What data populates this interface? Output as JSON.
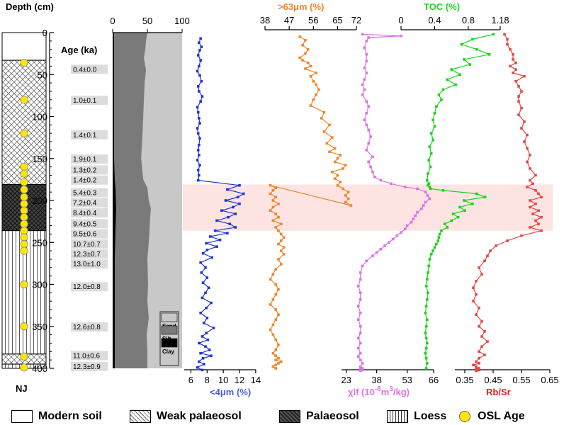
{
  "chart_data": {
    "type": "line",
    "depth_axis": {
      "title": "Depth (cm)",
      "ticks": [
        0,
        50,
        100,
        150,
        200,
        250,
        300,
        350,
        400
      ],
      "range": [
        0,
        400
      ]
    },
    "age_title": "Age (ka)",
    "site_label": "NJ",
    "ages": [
      {
        "depth": 45,
        "label": "0.4±0.0"
      },
      {
        "depth": 82,
        "label": "1.0±0.1"
      },
      {
        "depth": 123,
        "label": "1.4±0.1"
      },
      {
        "depth": 152,
        "label": "1.9±0.1"
      },
      {
        "depth": 165,
        "label": "1.3±0.2"
      },
      {
        "depth": 177,
        "label": "1.4±0.2"
      },
      {
        "depth": 192,
        "label": "5.4±0.3"
      },
      {
        "depth": 204,
        "label": "7.2±0.4"
      },
      {
        "depth": 216,
        "label": "8.4±0.4"
      },
      {
        "depth": 229,
        "label": "9.4±0.5"
      },
      {
        "depth": 241,
        "label": "9.5±0.6"
      },
      {
        "depth": 253,
        "label": "10.7±0.7"
      },
      {
        "depth": 265,
        "label": "12.3±0.7"
      },
      {
        "depth": 277,
        "label": "13.0±1.0"
      },
      {
        "depth": 304,
        "label": "12.0±0.8"
      },
      {
        "depth": 352,
        "label": "12.6±0.8"
      },
      {
        "depth": 386,
        "label": "11.0±0.6"
      },
      {
        "depth": 399,
        "label": "12.3±0.9"
      }
    ],
    "osl_dots": [
      36,
      80,
      120,
      160,
      168,
      178,
      187,
      196,
      204,
      212,
      220,
      228,
      236,
      244,
      252,
      260,
      300,
      350,
      386,
      399
    ],
    "stratigraphy": [
      {
        "unit": "modern_soil",
        "top": 0,
        "bottom": 33
      },
      {
        "unit": "weak_palaeosol",
        "top": 33,
        "bottom": 181
      },
      {
        "unit": "palaeosol",
        "top": 181,
        "bottom": 236
      },
      {
        "unit": "loess",
        "top": 236,
        "bottom": 383
      },
      {
        "unit": "weak_palaeosol",
        "top": 383,
        "bottom": 395
      },
      {
        "unit": "loess",
        "top": 395,
        "bottom": 400
      }
    ],
    "highlight": {
      "top": 181,
      "bottom": 236,
      "color": "#fde4e2"
    },
    "grain_size": {
      "ticks": [
        0,
        50,
        100
      ],
      "legend": [
        {
          "label": "Sand",
          "color": "#c8c8c8"
        },
        {
          "label": "Silt",
          "color": "#7a7a7a"
        },
        {
          "label": "Clay",
          "color": "#000000"
        }
      ],
      "clay": [
        [
          0,
          2
        ],
        [
          50,
          2
        ],
        [
          100,
          2
        ],
        [
          150,
          2
        ],
        [
          175,
          3
        ],
        [
          185,
          4
        ],
        [
          210,
          5
        ],
        [
          236,
          4
        ],
        [
          270,
          3
        ],
        [
          320,
          3
        ],
        [
          360,
          3
        ],
        [
          400,
          3
        ]
      ],
      "clay_silt": [
        [
          0,
          50
        ],
        [
          10,
          48
        ],
        [
          20,
          47
        ],
        [
          30,
          45
        ],
        [
          45,
          48
        ],
        [
          60,
          46
        ],
        [
          80,
          45
        ],
        [
          100,
          44
        ],
        [
          120,
          43
        ],
        [
          150,
          41
        ],
        [
          175,
          44
        ],
        [
          185,
          50
        ],
        [
          200,
          52
        ],
        [
          210,
          55
        ],
        [
          220,
          54
        ],
        [
          236,
          53
        ],
        [
          250,
          52
        ],
        [
          270,
          50
        ],
        [
          300,
          51
        ],
        [
          320,
          50
        ],
        [
          340,
          52
        ],
        [
          360,
          49
        ],
        [
          380,
          50
        ],
        [
          400,
          50
        ]
      ]
    },
    "series": [
      {
        "name": "<4μm (%)",
        "color": "#1f35d8",
        "axis_ticks": [
          6,
          8,
          10,
          12,
          14
        ],
        "axis_range": [
          5,
          15.5
        ],
        "x": [
          7.2,
          7.0,
          7.3,
          7.1,
          6.9,
          7.2,
          7.0,
          6.8,
          7.1,
          7.3,
          6.9,
          7.0,
          7.4,
          7.2,
          6.8,
          6.9,
          7.0,
          7.1,
          6.8,
          6.9,
          7.1,
          7.0,
          6.9,
          7.0,
          6.8,
          7.1,
          6.9,
          7.0,
          6.9,
          12.0,
          10.5,
          12.5,
          11.8,
          10.3,
          12.0,
          11.2,
          9.8,
          11.5,
          10.6,
          9.2,
          10.8,
          11.5,
          9.0,
          10.5,
          8.4,
          9.6,
          7.9,
          9.2,
          8.0,
          7.5,
          8.6,
          7.2,
          7.8,
          7.3,
          8.0,
          7.5,
          8.2,
          7.8,
          7.4,
          8.5,
          7.9,
          7.2,
          8.0,
          7.6,
          8.8,
          7.9,
          7.4,
          8.1,
          7.0,
          7.8,
          8.3,
          7.2,
          8.5,
          7.5,
          7.0,
          7.6,
          6.8,
          7.4
        ],
        "y": [
          7,
          12,
          17,
          21,
          27,
          33,
          40,
          46,
          51,
          58,
          64,
          70,
          76,
          82,
          89,
          95,
          102,
          108,
          114,
          120,
          126,
          134,
          140,
          146,
          152,
          158,
          164,
          170,
          176,
          182,
          187,
          192,
          196,
          200,
          204,
          208,
          212,
          216,
          220,
          224,
          228,
          232,
          236,
          239,
          243,
          247,
          251,
          255,
          259,
          263,
          268,
          274,
          280,
          286,
          292,
          298,
          304,
          310,
          316,
          322,
          328,
          334,
          340,
          346,
          352,
          358,
          362,
          366,
          370,
          374,
          378,
          382,
          385,
          388,
          392,
          395,
          399,
          402
        ]
      },
      {
        "name": ">63μm (%)",
        "color": "#f0852a",
        "axis_ticks": [
          38,
          47,
          56,
          65,
          72
        ],
        "axis_range": [
          38,
          72
        ],
        "x": [
          51,
          53,
          52,
          54,
          53,
          51,
          52,
          54,
          55,
          53,
          57,
          55,
          56,
          57,
          58,
          57,
          56,
          55,
          60,
          59,
          62,
          60,
          63,
          61,
          64,
          62,
          66,
          65,
          64,
          68,
          67,
          63,
          65,
          64,
          66,
          65,
          67,
          69,
          68,
          69,
          68,
          70
        ],
        "y": [
          5,
          9,
          15,
          20,
          25,
          30,
          33,
          36,
          40,
          43,
          48,
          52,
          58,
          62,
          68,
          74,
          80,
          87,
          95,
          102,
          110,
          118,
          125,
          132,
          138,
          142,
          146,
          150,
          154,
          158,
          162,
          166,
          170,
          174,
          178,
          182,
          186,
          190,
          194,
          198,
          202,
          206
        ],
        "note_series": "upper >63 segment"
      },
      {
        "name": "χlf (10-8m3/kg)",
        "color": "#e070e8",
        "axis_ticks": [
          23,
          38,
          53,
          66
        ],
        "tick_labels": [
          "23",
          "38",
          "53",
          "66"
        ],
        "axis_range": [
          20,
          66
        ],
        "x": [
          31,
          50,
          34,
          33,
          32,
          33,
          33,
          32,
          33,
          32,
          31,
          32,
          31,
          33,
          34,
          33,
          32,
          33,
          34,
          35,
          34,
          33,
          36,
          34,
          35,
          36,
          37,
          40,
          45,
          52,
          58,
          62,
          63,
          64,
          62,
          61,
          60,
          58,
          57,
          56,
          55,
          53,
          52,
          50,
          48,
          46,
          44,
          42,
          40,
          38,
          36,
          33,
          31,
          30,
          30,
          29,
          30,
          30,
          29,
          30,
          29,
          30,
          30,
          29,
          30,
          29,
          30,
          29,
          30,
          31,
          30,
          31,
          30,
          31,
          30
        ],
        "y": [
          2,
          4,
          6,
          10,
          18,
          26,
          34,
          42,
          48,
          56,
          62,
          68,
          74,
          82,
          88,
          96,
          104,
          110,
          116,
          124,
          132,
          140,
          148,
          154,
          160,
          166,
          172,
          176,
          180,
          184,
          186,
          190,
          194,
          198,
          202,
          206,
          210,
          214,
          218,
          222,
          226,
          230,
          234,
          238,
          242,
          246,
          250,
          254,
          258,
          262,
          266,
          272,
          278,
          286,
          294,
          302,
          310,
          318,
          326,
          334,
          342,
          350,
          358,
          364,
          370,
          376,
          382,
          386,
          390,
          394,
          398,
          400,
          401,
          402,
          403
        ]
      },
      {
        "name": "TOC (%)",
        "color": "#19d619",
        "axis_ticks": [
          0,
          0.4,
          0.8,
          1.18
        ],
        "tick_labels": [
          "0",
          "0.4",
          "0.8",
          "1.18"
        ],
        "axis_range": [
          0,
          1.18
        ],
        "x": [
          1.1,
          0.85,
          0.72,
          0.9,
          1.05,
          0.75,
          0.82,
          0.6,
          0.7,
          0.55,
          0.65,
          0.5,
          0.45,
          0.48,
          0.42,
          0.4,
          0.38,
          0.4,
          0.36,
          0.38,
          0.34,
          0.36,
          0.33,
          0.35,
          0.32,
          0.31,
          0.33,
          0.32,
          0.34,
          0.35,
          0.5,
          0.9,
          1.0,
          0.75,
          0.85,
          0.7,
          0.76,
          0.62,
          0.68,
          0.6,
          0.52,
          0.55,
          0.48,
          0.46,
          0.45,
          0.44,
          0.42,
          0.4,
          0.38,
          0.36,
          0.34,
          0.33,
          0.32,
          0.31,
          0.3,
          0.32,
          0.31,
          0.3,
          0.29,
          0.31,
          0.3,
          0.29,
          0.3,
          0.31,
          0.3,
          0.29,
          0.3,
          0.31,
          0.3
        ],
        "y": [
          2,
          8,
          14,
          20,
          26,
          32,
          38,
          44,
          50,
          56,
          62,
          68,
          74,
          80,
          88,
          96,
          104,
          112,
          120,
          128,
          136,
          144,
          152,
          160,
          168,
          176,
          180,
          182,
          184,
          186,
          188,
          192,
          196,
          200,
          204,
          208,
          212,
          216,
          220,
          224,
          228,
          232,
          236,
          240,
          244,
          248,
          252,
          256,
          260,
          264,
          270,
          278,
          286,
          294,
          302,
          310,
          318,
          326,
          334,
          342,
          350,
          358,
          364,
          370,
          376,
          382,
          388,
          394,
          400
        ]
      },
      {
        "name": "Rb/Sr",
        "color": "#e84545",
        "axis_ticks": [
          0.35,
          0.45,
          0.55,
          0.65
        ],
        "tick_labels": [
          "0.35",
          "0.45",
          "0.55",
          "0.65"
        ],
        "axis_range": [
          0.31,
          0.66
        ],
        "x": [
          0.49,
          0.5,
          0.5,
          0.51,
          0.52,
          0.52,
          0.53,
          0.51,
          0.53,
          0.52,
          0.56,
          0.53,
          0.54,
          0.55,
          0.54,
          0.54,
          0.55,
          0.54,
          0.56,
          0.55,
          0.57,
          0.56,
          0.57,
          0.58,
          0.57,
          0.58,
          0.6,
          0.58,
          0.59,
          0.57,
          0.6,
          0.61,
          0.62,
          0.58,
          0.6,
          0.58,
          0.61,
          0.59,
          0.62,
          0.6,
          0.61,
          0.58,
          0.62,
          0.55,
          0.5,
          0.46,
          0.44,
          0.43,
          0.42,
          0.4,
          0.41,
          0.39,
          0.38,
          0.39,
          0.38,
          0.4,
          0.39,
          0.41,
          0.4,
          0.42,
          0.41,
          0.43,
          0.41,
          0.4,
          0.42,
          0.4,
          0.39,
          0.4,
          0.38,
          0.39,
          0.4,
          0.39,
          0.4,
          0.39
        ],
        "y": [
          2,
          8,
          14,
          20,
          26,
          32,
          36,
          40,
          44,
          48,
          52,
          58,
          64,
          70,
          76,
          82,
          90,
          98,
          106,
          114,
          122,
          130,
          138,
          146,
          154,
          162,
          170,
          176,
          180,
          184,
          188,
          192,
          196,
          200,
          204,
          208,
          212,
          216,
          220,
          224,
          228,
          232,
          236,
          242,
          248,
          254,
          260,
          266,
          272,
          280,
          288,
          296,
          304,
          312,
          320,
          328,
          336,
          344,
          350,
          356,
          362,
          368,
          374,
          380,
          384,
          388,
          392,
          394,
          396,
          398,
          400,
          401,
          402,
          403
        ]
      }
    ],
    "gt63_lower": {
      "x": [
        40,
        42,
        41,
        40,
        42,
        41,
        43,
        41,
        40,
        42,
        43,
        41,
        44,
        42,
        43,
        44,
        45,
        44,
        43,
        45,
        44,
        45,
        43,
        44,
        42,
        41,
        40,
        42,
        43,
        42,
        41,
        40,
        42,
        43,
        42,
        41,
        40,
        41,
        42,
        43,
        42,
        41,
        42,
        43,
        42,
        44,
        43,
        42,
        41,
        42
      ],
      "y": [
        182,
        185,
        188,
        192,
        196,
        200,
        204,
        208,
        212,
        216,
        220,
        224,
        228,
        232,
        236,
        240,
        244,
        248,
        252,
        256,
        260,
        264,
        270,
        276,
        282,
        288,
        294,
        300,
        306,
        312,
        318,
        324,
        330,
        336,
        342,
        348,
        354,
        360,
        366,
        372,
        378,
        382,
        385,
        388,
        390,
        392,
        394,
        396,
        398,
        400
      ]
    },
    "axis_titles": {
      "lt4": "<4μm (%)",
      "gt63": ">63μm (%)",
      "chi_prefix": "χlf (10",
      "chi_exp1": "-8",
      "chi_mid": "m",
      "chi_exp2": "3",
      "chi_suffix": "/kg)",
      "toc": "TOC (%)",
      "rbsr": "Rb/Sr"
    }
  },
  "legend": {
    "items": [
      {
        "label": "Modern soil"
      },
      {
        "label": "Weak palaeosol"
      },
      {
        "label": "Palaeosol"
      },
      {
        "label": "Loess"
      },
      {
        "label": "OSL Age"
      }
    ]
  }
}
